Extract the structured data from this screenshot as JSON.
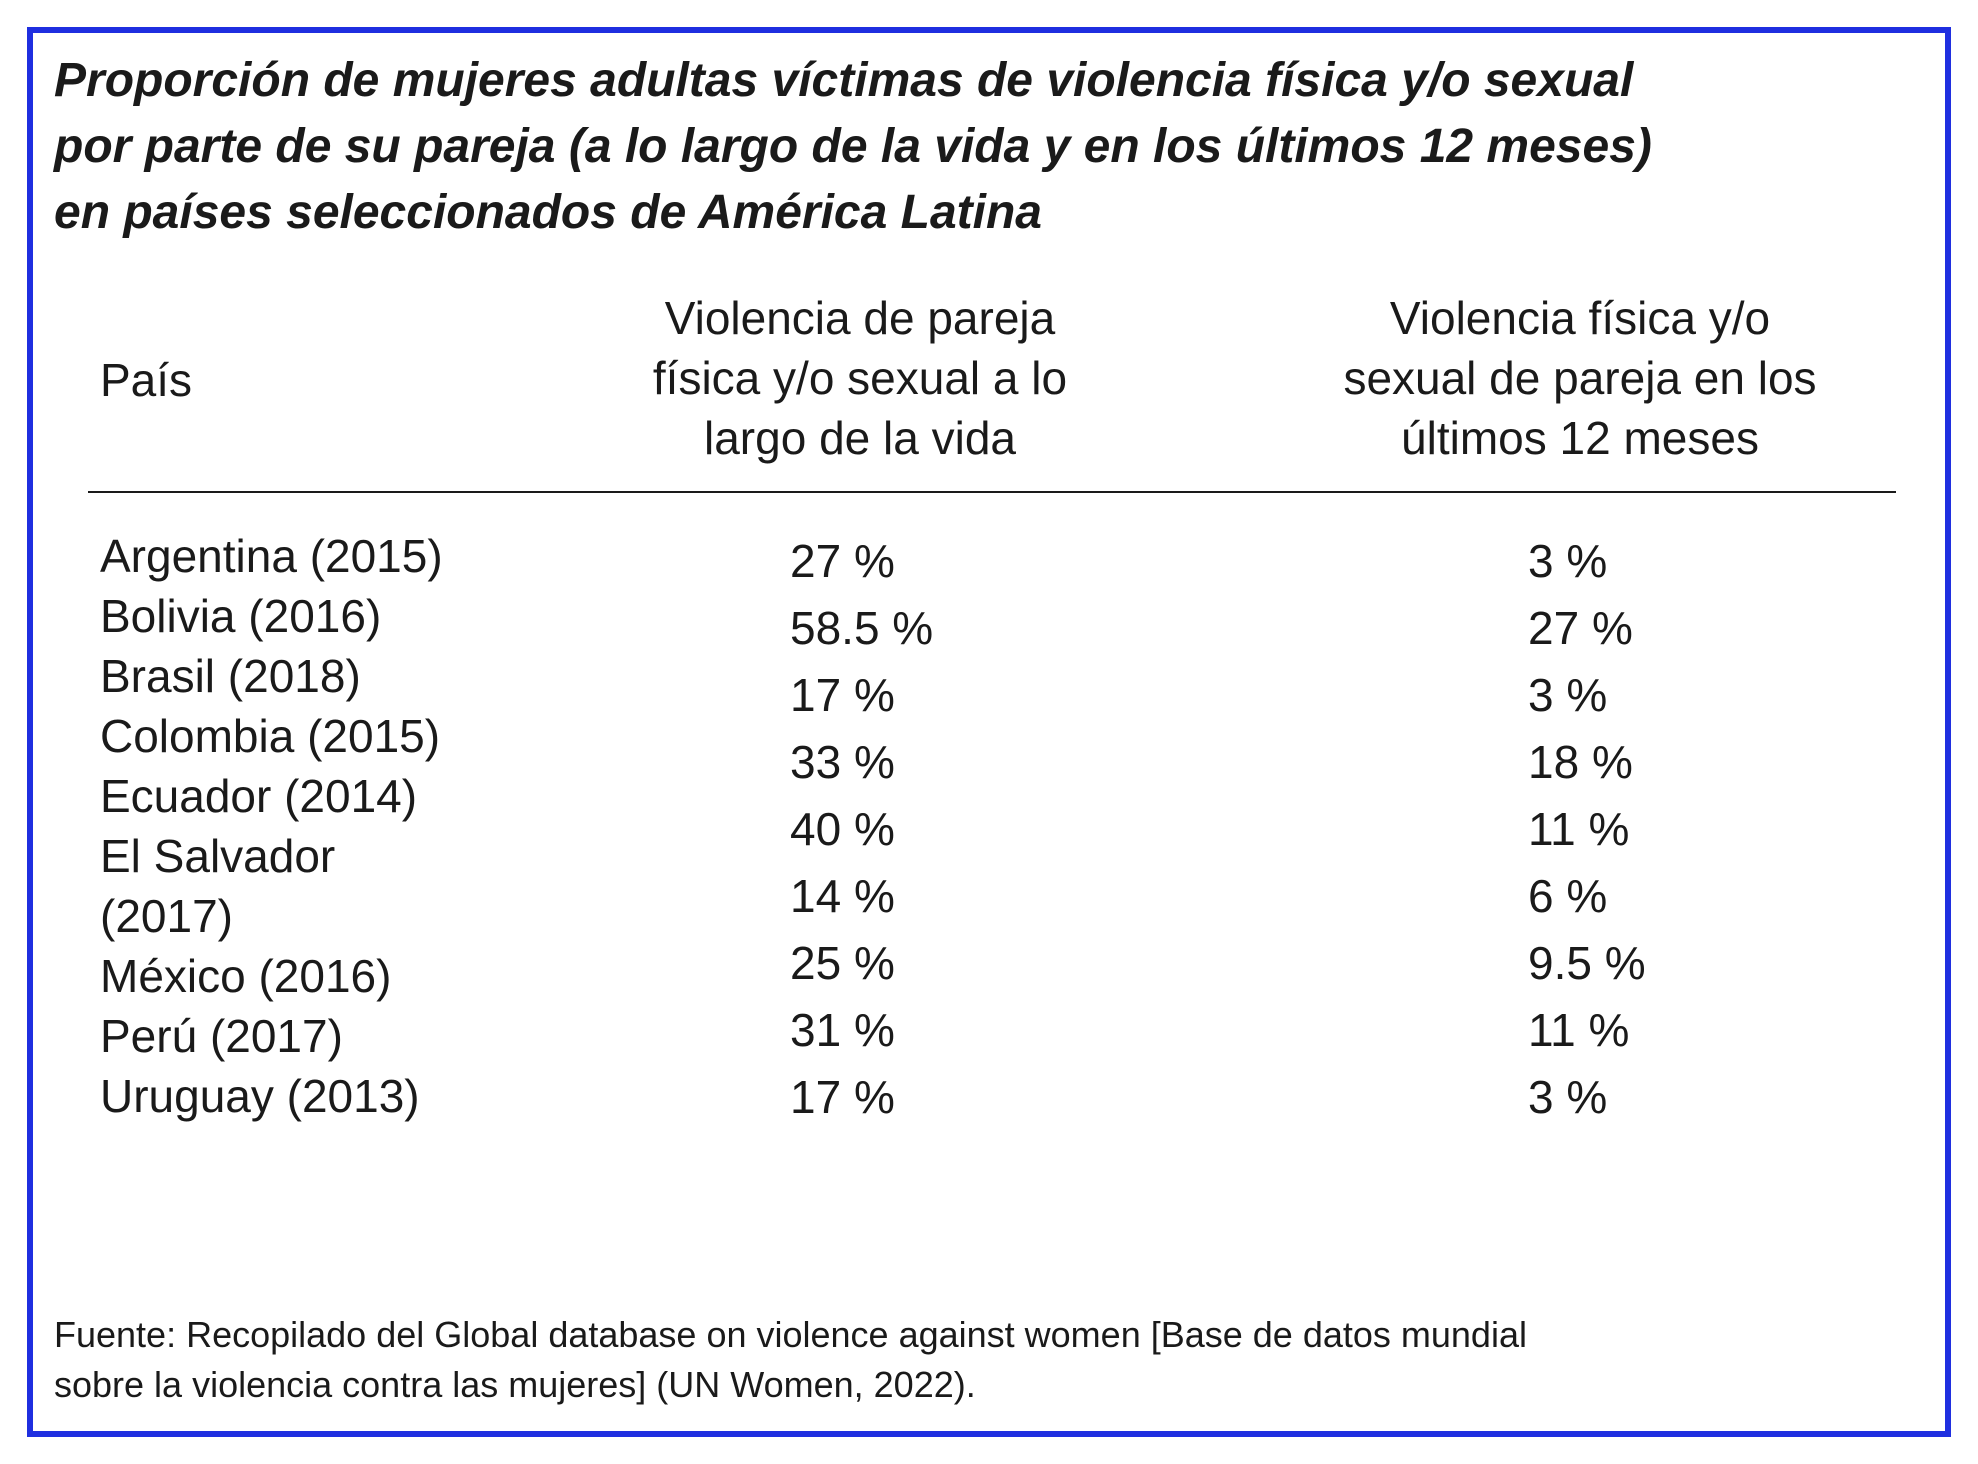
{
  "title_lines": [
    "Proporción de mujeres adultas víctimas de violencia física y/o sexual",
    "por parte de su pareja (a lo largo de la vida y en los últimos 12 meses)",
    "en países seleccionados de América Latina"
  ],
  "table": {
    "headers": {
      "country": "País",
      "lifetime_lines": [
        "Violencia de pareja",
        "física y/o sexual a lo",
        "largo de la vida"
      ],
      "last12_lines": [
        "Violencia física y/o",
        "sexual de pareja en los",
        "últimos 12 meses"
      ]
    },
    "country_lines": [
      "Argentina (2015)",
      "Bolivia (2016)",
      "Brasil (2018)",
      "Colombia (2015)",
      "Ecuador (2014)",
      "El Salvador",
      "(2017)",
      "México (2016)",
      "Perú (2017)",
      "Uruguay (2013)"
    ],
    "lifetime_values": [
      "27 %",
      "58.5 %",
      "17 %",
      "33 %",
      "40 %",
      "14 %",
      "25 %",
      "31 %",
      "17 %"
    ],
    "last12_values": [
      "3 %",
      "27 %",
      "3 %",
      "18 %",
      "11 %",
      "6 %",
      "9.5 %",
      "11 %",
      "3 %"
    ]
  },
  "source_lines": [
    "Fuente: Recopilado del Global database on violence against women [Base de datos mundial",
    "sobre la violencia contra las mujeres] (UN Women, 2022)."
  ]
}
